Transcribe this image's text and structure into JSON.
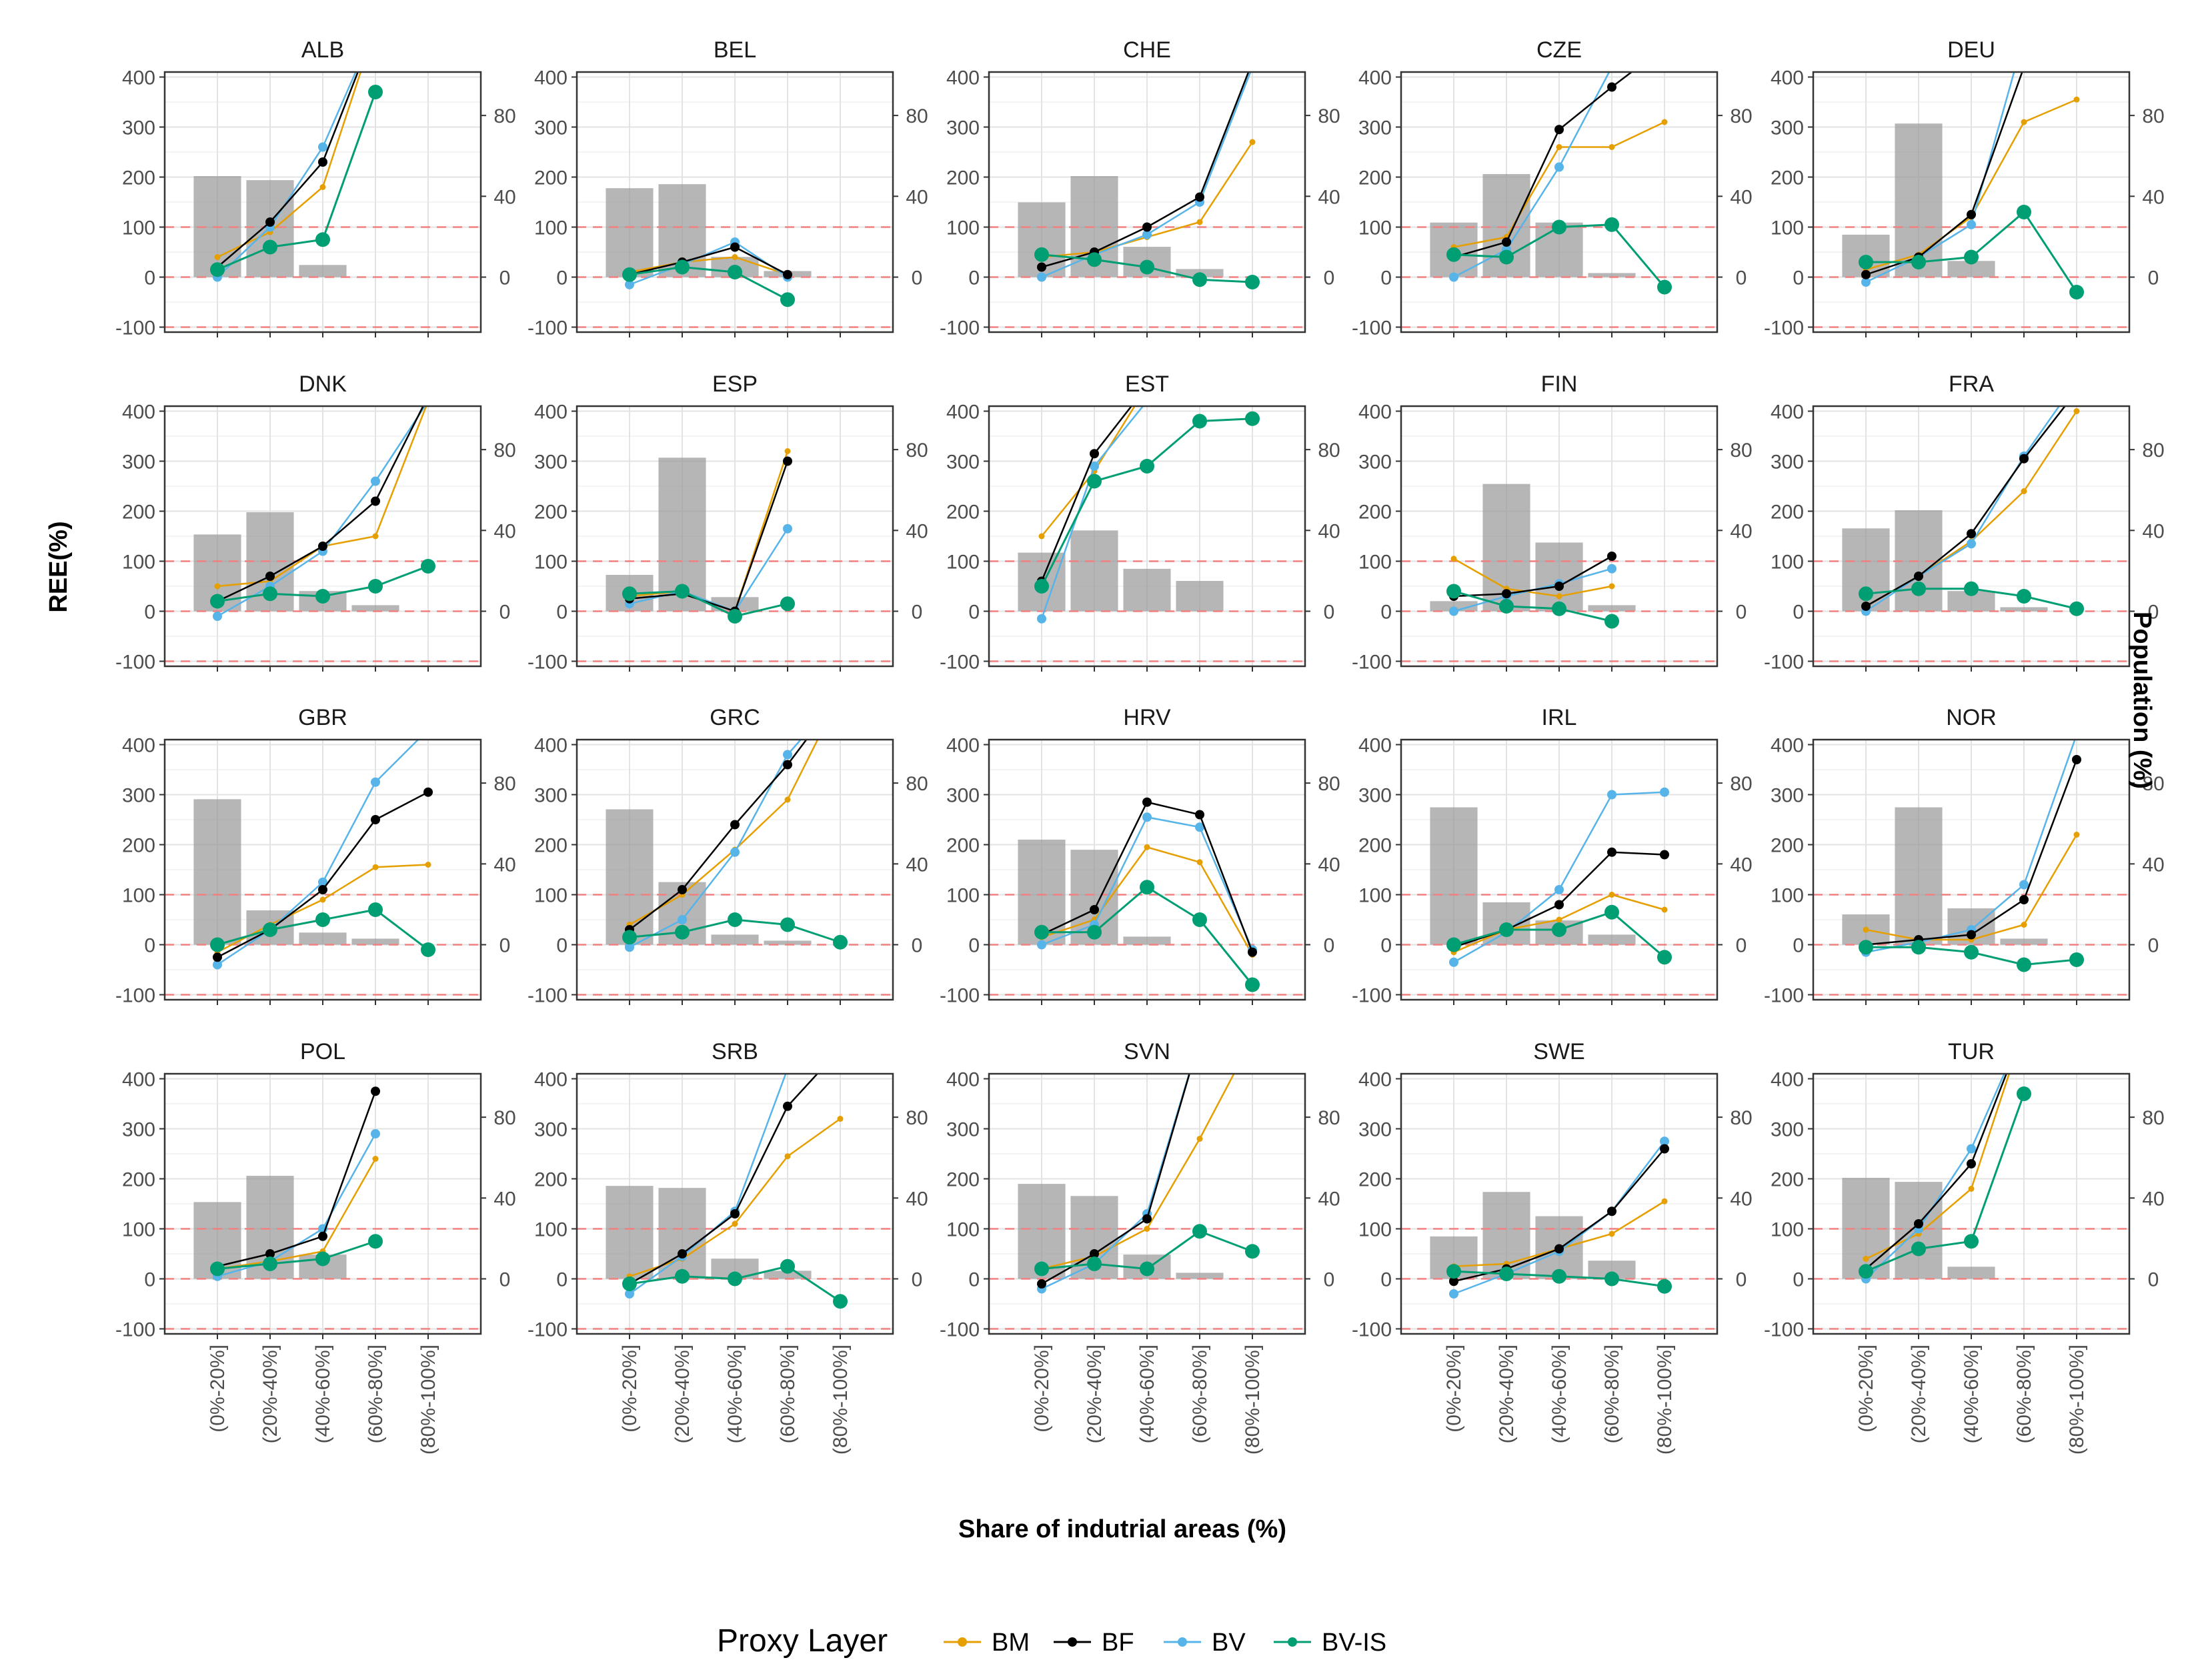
{
  "chart_data": {
    "type": "line",
    "xlabel": "Share of indutrial areas (%)",
    "ylabel": "REE(%)",
    "y2label": "Population (%)",
    "categories": [
      "(0%-20%]",
      "(20%-40%]",
      "(40%-60%]",
      "(60%-80%]",
      "(80%-100%]"
    ],
    "ylim": [
      -110,
      410
    ],
    "y_ticks": [
      -100,
      0,
      100,
      200,
      300,
      400
    ],
    "y2_ticks": [
      0,
      40,
      80
    ],
    "reference_lines": [
      -100,
      0,
      100
    ],
    "legend": {
      "title": "Proxy Layer",
      "entries": [
        {
          "name": "BM",
          "color": "#E69F00"
        },
        {
          "name": "BF",
          "color": "#000000"
        },
        {
          "name": "BV",
          "color": "#56B4E9"
        },
        {
          "name": "BV-IS",
          "color": "#009E73"
        }
      ]
    },
    "panels": [
      {
        "name": "ALB",
        "population": [
          50,
          48,
          6,
          null,
          null
        ],
        "series": {
          "BM": [
            40,
            90,
            180,
            500,
            null
          ],
          "BF": [
            20,
            110,
            230,
            500,
            null
          ],
          "BV": [
            0,
            100,
            260,
            500,
            null
          ],
          "BV-IS": [
            15,
            60,
            75,
            370,
            null
          ]
        }
      },
      {
        "name": "BEL",
        "population": [
          44,
          46,
          10,
          3,
          null
        ],
        "series": {
          "BM": [
            10,
            30,
            40,
            5,
            null
          ],
          "BF": [
            5,
            30,
            60,
            5,
            null
          ],
          "BV": [
            -15,
            25,
            70,
            0,
            null
          ],
          "BV-IS": [
            5,
            20,
            10,
            -45,
            null
          ]
        }
      },
      {
        "name": "CHE",
        "population": [
          37,
          50,
          15,
          4,
          null
        ],
        "series": {
          "BM": [
            40,
            50,
            80,
            110,
            270
          ],
          "BF": [
            20,
            50,
            100,
            160,
            430
          ],
          "BV": [
            0,
            45,
            85,
            150,
            420
          ],
          "BV-IS": [
            45,
            35,
            20,
            -5,
            -10
          ]
        }
      },
      {
        "name": "CZE",
        "population": [
          27,
          51,
          27,
          2,
          null
        ],
        "series": {
          "BM": [
            60,
            80,
            260,
            260,
            310
          ],
          "BF": [
            40,
            70,
            295,
            380,
            460
          ],
          "BV": [
            0,
            55,
            220,
            420,
            500
          ],
          "BV-IS": [
            45,
            40,
            100,
            105,
            -20
          ]
        }
      },
      {
        "name": "DEU",
        "population": [
          21,
          76,
          8,
          null,
          null
        ],
        "series": {
          "BM": [
            15,
            45,
            120,
            310,
            355
          ],
          "BF": [
            5,
            40,
            125,
            420,
            null
          ],
          "BV": [
            -10,
            40,
            105,
            480,
            null
          ],
          "BV-IS": [
            30,
            30,
            40,
            130,
            -30
          ]
        }
      },
      {
        "name": "DNK",
        "population": [
          38,
          49,
          10,
          3,
          null
        ],
        "series": {
          "BM": [
            50,
            60,
            130,
            150,
            420
          ],
          "BF": [
            20,
            70,
            130,
            220,
            430
          ],
          "BV": [
            -10,
            50,
            120,
            260,
            420
          ],
          "BV-IS": [
            20,
            35,
            30,
            50,
            90
          ]
        }
      },
      {
        "name": "ESP",
        "population": [
          18,
          76,
          7,
          null,
          null
        ],
        "series": {
          "BM": [
            30,
            40,
            0,
            320,
            null
          ],
          "BF": [
            25,
            35,
            0,
            300,
            null
          ],
          "BV": [
            15,
            40,
            0,
            165,
            null
          ],
          "BV-IS": [
            35,
            40,
            -10,
            15,
            null
          ]
        }
      },
      {
        "name": "EST",
        "population": [
          29,
          40,
          21,
          15,
          null
        ],
        "series": {
          "BM": [
            150,
            280,
            450,
            null,
            null
          ],
          "BF": [
            60,
            315,
            450,
            null,
            null
          ],
          "BV": [
            -15,
            290,
            420,
            null,
            null
          ],
          "BV-IS": [
            50,
            260,
            290,
            380,
            385
          ]
        }
      },
      {
        "name": "FIN",
        "population": [
          5,
          63,
          34,
          3,
          null
        ],
        "series": {
          "BM": [
            105,
            45,
            30,
            50,
            null
          ],
          "BF": [
            30,
            35,
            50,
            110,
            null
          ],
          "BV": [
            0,
            30,
            55,
            85,
            null
          ],
          "BV-IS": [
            40,
            10,
            5,
            -20,
            null
          ]
        }
      },
      {
        "name": "FRA",
        "population": [
          41,
          50,
          10,
          2,
          null
        ],
        "series": {
          "BM": [
            10,
            70,
            140,
            240,
            400
          ],
          "BF": [
            10,
            70,
            155,
            305,
            440
          ],
          "BV": [
            0,
            70,
            135,
            310,
            460
          ],
          "BV-IS": [
            35,
            45,
            45,
            30,
            5
          ]
        }
      },
      {
        "name": "GBR",
        "population": [
          72,
          17,
          6,
          3,
          null
        ],
        "series": {
          "BM": [
            -15,
            40,
            90,
            155,
            160
          ],
          "BF": [
            -25,
            30,
            110,
            250,
            305
          ],
          "BV": [
            -40,
            30,
            125,
            325,
            430
          ],
          "BV-IS": [
            0,
            30,
            50,
            70,
            -10
          ]
        }
      },
      {
        "name": "GRC",
        "population": [
          67,
          31,
          5,
          2,
          null
        ],
        "series": {
          "BM": [
            40,
            100,
            190,
            290,
            500
          ],
          "BF": [
            30,
            110,
            240,
            360,
            500
          ],
          "BV": [
            -5,
            50,
            185,
            380,
            500
          ],
          "BV-IS": [
            15,
            25,
            50,
            40,
            5
          ]
        }
      },
      {
        "name": "HRV",
        "population": [
          52,
          47,
          4,
          null,
          null
        ],
        "series": {
          "BM": [
            15,
            50,
            195,
            165,
            -20
          ],
          "BF": [
            20,
            70,
            285,
            260,
            -15
          ],
          "BV": [
            0,
            40,
            255,
            235,
            -10
          ],
          "BV-IS": [
            25,
            25,
            115,
            50,
            -80
          ]
        }
      },
      {
        "name": "IRL",
        "population": [
          68,
          21,
          12,
          5,
          null
        ],
        "series": {
          "BM": [
            -15,
            30,
            50,
            100,
            70
          ],
          "BF": [
            -5,
            30,
            80,
            185,
            180
          ],
          "BV": [
            -35,
            25,
            110,
            300,
            305
          ],
          "BV-IS": [
            0,
            30,
            30,
            65,
            -25
          ]
        }
      },
      {
        "name": "NOR",
        "population": [
          15,
          68,
          18,
          3,
          null
        ],
        "series": {
          "BM": [
            30,
            10,
            10,
            40,
            220
          ],
          "BF": [
            0,
            10,
            20,
            90,
            370
          ],
          "BV": [
            -15,
            5,
            30,
            120,
            420
          ],
          "BV-IS": [
            -5,
            -5,
            -15,
            -40,
            -30
          ]
        }
      },
      {
        "name": "POL",
        "population": [
          38,
          51,
          12,
          null,
          null
        ],
        "series": {
          "BM": [
            20,
            35,
            55,
            240,
            null
          ],
          "BF": [
            25,
            50,
            85,
            375,
            null
          ],
          "BV": [
            5,
            35,
            100,
            290,
            null
          ],
          "BV-IS": [
            20,
            30,
            40,
            75,
            null
          ]
        }
      },
      {
        "name": "SRB",
        "population": [
          46,
          45,
          10,
          4,
          null
        ],
        "series": {
          "BM": [
            5,
            40,
            110,
            245,
            320
          ],
          "BF": [
            -10,
            50,
            130,
            345,
            460
          ],
          "BV": [
            -30,
            45,
            135,
            420,
            480
          ],
          "BV-IS": [
            -10,
            5,
            0,
            25,
            -45
          ]
        }
      },
      {
        "name": "SVN",
        "population": [
          47,
          41,
          12,
          3,
          null
        ],
        "series": {
          "BM": [
            20,
            45,
            100,
            280,
            480
          ],
          "BF": [
            -10,
            50,
            120,
            480,
            null
          ],
          "BV": [
            -20,
            30,
            130,
            480,
            null
          ],
          "BV-IS": [
            20,
            30,
            20,
            95,
            55
          ]
        }
      },
      {
        "name": "SWE",
        "population": [
          21,
          43,
          31,
          9,
          null
        ],
        "series": {
          "BM": [
            25,
            30,
            60,
            90,
            155
          ],
          "BF": [
            -5,
            20,
            60,
            135,
            260
          ],
          "BV": [
            -30,
            10,
            55,
            135,
            275
          ],
          "BV-IS": [
            15,
            10,
            5,
            0,
            -15
          ]
        }
      },
      {
        "name": "TUR",
        "population": [
          50,
          48,
          6,
          null,
          null
        ],
        "series": {
          "BM": [
            40,
            90,
            180,
            500,
            null
          ],
          "BF": [
            20,
            110,
            230,
            500,
            null
          ],
          "BV": [
            0,
            100,
            260,
            500,
            null
          ],
          "BV-IS": [
            15,
            60,
            75,
            370,
            null
          ]
        }
      }
    ]
  }
}
